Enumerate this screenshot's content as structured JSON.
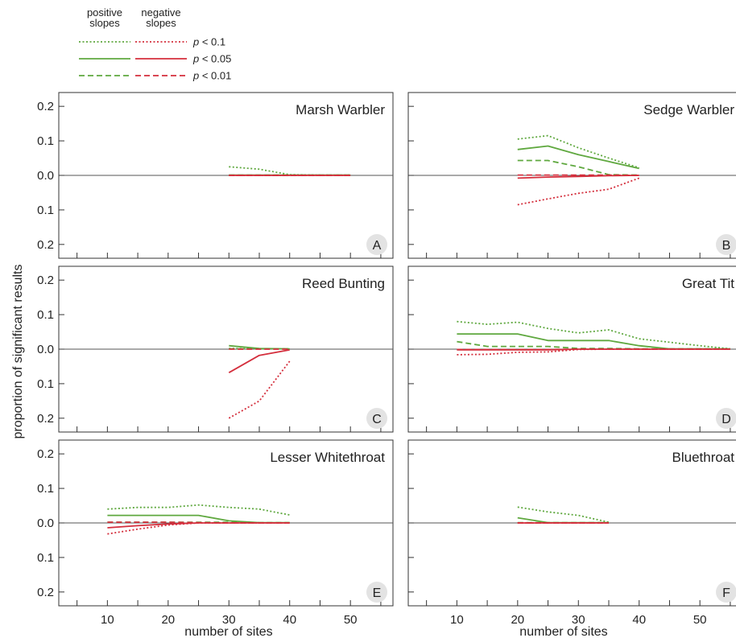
{
  "chart_data": {
    "type": "line",
    "xlabel": "number of sites",
    "ylabel": "proportion of significant results",
    "xticks": [
      10,
      20,
      30,
      40,
      50
    ],
    "yticks": [
      {
        "value": 0.2,
        "label": "0.2"
      },
      {
        "value": 0.1,
        "label": "0.1"
      },
      {
        "value": 0.0,
        "label": "0.0"
      },
      {
        "value": -0.1,
        "label": "0.1"
      },
      {
        "value": -0.2,
        "label": "0.2"
      }
    ],
    "xlim": [
      2,
      57
    ],
    "ylim": [
      -0.24,
      0.24
    ],
    "colors": {
      "positive": "#5fa83f",
      "negative": "#d42e3c",
      "zero_line": "#555555",
      "badge": "#e3e3e3"
    },
    "legend": {
      "columns": [
        "positive\nslopes",
        "negative\nslopes"
      ],
      "rows": [
        {
          "p_symbol": "p",
          "threshold": "< 0.1",
          "style": "dotted"
        },
        {
          "p_symbol": "p",
          "threshold": "< 0.05",
          "style": "solid"
        },
        {
          "p_symbol": "p",
          "threshold": "< 0.01",
          "style": "dashed"
        }
      ]
    },
    "panels": [
      {
        "title": "Marsh Warbler",
        "letter": "A",
        "series": [
          {
            "sign": "positive",
            "level": "p < 0.1",
            "style": "dotted",
            "x": [
              30,
              35,
              40,
              45,
              50
            ],
            "y": [
              0.025,
              0.018,
              0.002,
              0.001,
              0.001
            ]
          },
          {
            "sign": "positive",
            "level": "p < 0.05",
            "style": "solid",
            "x": [
              30,
              35,
              40,
              45,
              50
            ],
            "y": [
              0.001,
              0.001,
              0.001,
              0.001,
              0.001
            ]
          },
          {
            "sign": "positive",
            "level": "p < 0.01",
            "style": "dashed",
            "x": [
              30,
              35,
              40,
              45,
              50
            ],
            "y": [
              0.001,
              0.001,
              0.001,
              0.001,
              0.001
            ]
          },
          {
            "sign": "negative",
            "level": "p < 0.1",
            "style": "dotted",
            "x": [
              30,
              35,
              40,
              45,
              50
            ],
            "y": [
              0,
              0,
              0,
              0,
              0
            ]
          },
          {
            "sign": "negative",
            "level": "p < 0.05",
            "style": "solid",
            "x": [
              30,
              35,
              40,
              45,
              50
            ],
            "y": [
              0,
              0,
              0,
              0,
              0
            ]
          },
          {
            "sign": "negative",
            "level": "p < 0.01",
            "style": "dashed",
            "x": [
              30,
              35,
              40,
              45,
              50
            ],
            "y": [
              0,
              0,
              0,
              0,
              0
            ]
          }
        ]
      },
      {
        "title": "Sedge Warbler",
        "letter": "B",
        "series": [
          {
            "sign": "positive",
            "level": "p < 0.1",
            "style": "dotted",
            "x": [
              20,
              25,
              30,
              35,
              40
            ],
            "y": [
              0.105,
              0.115,
              0.08,
              0.05,
              0.022
            ]
          },
          {
            "sign": "positive",
            "level": "p < 0.05",
            "style": "solid",
            "x": [
              20,
              25,
              30,
              35,
              40
            ],
            "y": [
              0.075,
              0.085,
              0.06,
              0.04,
              0.02
            ]
          },
          {
            "sign": "positive",
            "level": "p < 0.01",
            "style": "dashed",
            "x": [
              20,
              25,
              30,
              35,
              40
            ],
            "y": [
              0.043,
              0.043,
              0.025,
              0.002,
              0.001
            ]
          },
          {
            "sign": "negative",
            "level": "p < 0.1",
            "style": "dotted",
            "x": [
              20,
              25,
              30,
              35,
              40
            ],
            "y": [
              -0.085,
              -0.068,
              -0.052,
              -0.04,
              -0.008
            ]
          },
          {
            "sign": "negative",
            "level": "p < 0.05",
            "style": "solid",
            "x": [
              20,
              25,
              30,
              35,
              40
            ],
            "y": [
              -0.008,
              -0.005,
              -0.003,
              -0.001,
              0
            ]
          },
          {
            "sign": "negative",
            "level": "p < 0.01",
            "style": "dashed",
            "x": [
              20,
              25,
              30,
              35,
              40
            ],
            "y": [
              0.001,
              0.001,
              0.001,
              0.001,
              0
            ]
          }
        ]
      },
      {
        "title": "Reed Bunting",
        "letter": "C",
        "series": [
          {
            "sign": "positive",
            "level": "p < 0.1",
            "style": "dotted",
            "x": [
              30,
              35,
              40
            ],
            "y": [
              0.002,
              0.001,
              0.001
            ]
          },
          {
            "sign": "positive",
            "level": "p < 0.05",
            "style": "solid",
            "x": [
              30,
              35,
              40
            ],
            "y": [
              0.01,
              0.002,
              0.001
            ]
          },
          {
            "sign": "positive",
            "level": "p < 0.01",
            "style": "dashed",
            "x": [
              30,
              35,
              40
            ],
            "y": [
              0.001,
              0.001,
              0.001
            ]
          },
          {
            "sign": "negative",
            "level": "p < 0.1",
            "style": "dotted",
            "x": [
              30,
              35,
              40
            ],
            "y": [
              -0.2,
              -0.15,
              -0.035
            ]
          },
          {
            "sign": "negative",
            "level": "p < 0.05",
            "style": "solid",
            "x": [
              30,
              35,
              40
            ],
            "y": [
              -0.068,
              -0.018,
              -0.002
            ]
          },
          {
            "sign": "negative",
            "level": "p < 0.01",
            "style": "dashed",
            "x": [
              30,
              35,
              40
            ],
            "y": [
              0,
              0,
              0
            ]
          }
        ]
      },
      {
        "title": "Great Tit",
        "letter": "D",
        "series": [
          {
            "sign": "positive",
            "level": "p < 0.1",
            "style": "dotted",
            "x": [
              10,
              15,
              20,
              25,
              30,
              35,
              40,
              45,
              50,
              55
            ],
            "y": [
              0.08,
              0.072,
              0.078,
              0.06,
              0.047,
              0.056,
              0.03,
              0.02,
              0.01,
              0.001
            ]
          },
          {
            "sign": "positive",
            "level": "p < 0.05",
            "style": "solid",
            "x": [
              10,
              15,
              20,
              25,
              30,
              35,
              40,
              45,
              50,
              55
            ],
            "y": [
              0.044,
              0.044,
              0.044,
              0.025,
              0.025,
              0.025,
              0.01,
              0.001,
              0.001,
              0.001
            ]
          },
          {
            "sign": "positive",
            "level": "p < 0.01",
            "style": "dashed",
            "x": [
              10,
              15,
              20,
              25,
              30,
              35,
              40,
              45,
              50,
              55
            ],
            "y": [
              0.022,
              0.008,
              0.008,
              0.008,
              0.002,
              0.002,
              0.001,
              0.001,
              0.001,
              0.001
            ]
          },
          {
            "sign": "negative",
            "level": "p < 0.1",
            "style": "dotted",
            "x": [
              10,
              15,
              20,
              25,
              30,
              35,
              40,
              45,
              50,
              55
            ],
            "y": [
              -0.016,
              -0.015,
              -0.009,
              -0.008,
              -0.001,
              0,
              0,
              0,
              0,
              0
            ]
          },
          {
            "sign": "negative",
            "level": "p < 0.05",
            "style": "solid",
            "x": [
              10,
              15,
              20,
              25,
              30,
              35,
              40,
              45,
              50,
              55
            ],
            "y": [
              -0.002,
              -0.002,
              -0.002,
              -0.002,
              0,
              0,
              0,
              0,
              0,
              0
            ]
          },
          {
            "sign": "negative",
            "level": "p < 0.01",
            "style": "dashed",
            "x": [
              10,
              15,
              20,
              25,
              30,
              35,
              40,
              45,
              50,
              55
            ],
            "y": [
              -0.001,
              -0.001,
              -0.001,
              -0.001,
              0,
              0,
              0,
              0,
              0,
              0
            ]
          }
        ]
      },
      {
        "title": "Lesser Whitethroat",
        "letter": "E",
        "series": [
          {
            "sign": "positive",
            "level": "p < 0.1",
            "style": "dotted",
            "x": [
              10,
              15,
              20,
              25,
              30,
              35,
              40
            ],
            "y": [
              0.04,
              0.045,
              0.045,
              0.052,
              0.045,
              0.04,
              0.023
            ]
          },
          {
            "sign": "positive",
            "level": "p < 0.05",
            "style": "solid",
            "x": [
              10,
              15,
              20,
              25,
              30,
              35,
              40
            ],
            "y": [
              0.022,
              0.022,
              0.022,
              0.022,
              0.006,
              0.001,
              0.001
            ]
          },
          {
            "sign": "positive",
            "level": "p < 0.01",
            "style": "dashed",
            "x": [
              10,
              15,
              20,
              25,
              30,
              35,
              40
            ],
            "y": [
              0.002,
              0.002,
              0.002,
              0.002,
              0.002,
              0.001,
              0.001
            ]
          },
          {
            "sign": "negative",
            "level": "p < 0.1",
            "style": "dotted",
            "x": [
              10,
              15,
              20,
              25,
              30,
              35,
              40
            ],
            "y": [
              -0.032,
              -0.018,
              -0.006,
              0,
              0,
              0,
              0
            ]
          },
          {
            "sign": "negative",
            "level": "p < 0.05",
            "style": "solid",
            "x": [
              10,
              15,
              20,
              25,
              30,
              35,
              40
            ],
            "y": [
              -0.014,
              -0.008,
              -0.003,
              0,
              0,
              0,
              0
            ]
          },
          {
            "sign": "negative",
            "level": "p < 0.01",
            "style": "dashed",
            "x": [
              10,
              15,
              20,
              25,
              30,
              35,
              40
            ],
            "y": [
              0.002,
              0.002,
              0.002,
              0.001,
              0,
              0,
              0
            ]
          }
        ]
      },
      {
        "title": "Bluethroat",
        "letter": "F",
        "series": [
          {
            "sign": "positive",
            "level": "p < 0.1",
            "style": "dotted",
            "x": [
              20,
              25,
              30,
              35
            ],
            "y": [
              0.046,
              0.032,
              0.022,
              0.002
            ]
          },
          {
            "sign": "positive",
            "level": "p < 0.05",
            "style": "solid",
            "x": [
              20,
              25,
              30,
              35
            ],
            "y": [
              0.015,
              0.001,
              0.001,
              0.001
            ]
          },
          {
            "sign": "positive",
            "level": "p < 0.01",
            "style": "dashed",
            "x": [
              20,
              25,
              30,
              35
            ],
            "y": [
              0.001,
              0.001,
              0.001,
              0.001
            ]
          },
          {
            "sign": "negative",
            "level": "p < 0.1",
            "style": "dotted",
            "x": [
              20,
              25,
              30,
              35
            ],
            "y": [
              0,
              0,
              0,
              0
            ]
          },
          {
            "sign": "negative",
            "level": "p < 0.05",
            "style": "solid",
            "x": [
              20,
              25,
              30,
              35
            ],
            "y": [
              0,
              0,
              0,
              0
            ]
          },
          {
            "sign": "negative",
            "level": "p < 0.01",
            "style": "dashed",
            "x": [
              20,
              25,
              30,
              35
            ],
            "y": [
              0,
              0,
              0,
              0
            ]
          }
        ]
      }
    ]
  }
}
